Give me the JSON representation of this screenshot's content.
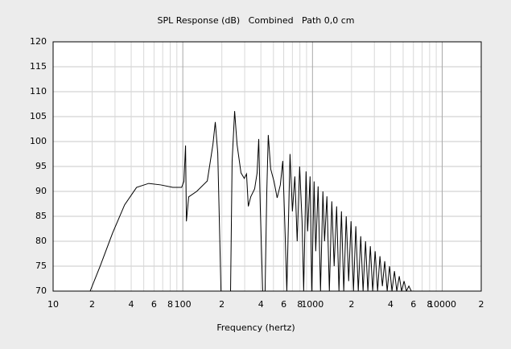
{
  "chart_data": {
    "type": "line",
    "title": "SPL Response (dB)   Combined   Path 0,0 cm",
    "xlabel": "Frequency (hertz)",
    "xscale": "log",
    "xlim": [
      10,
      20000
    ],
    "ylim": [
      70,
      120
    ],
    "xticks": [
      10,
      {
        "value": 20,
        "label": "2"
      },
      {
        "value": 40,
        "label": "4"
      },
      {
        "value": 60,
        "label": "6"
      },
      {
        "value": 80,
        "label": "8"
      },
      100,
      {
        "value": 200,
        "label": "2"
      },
      {
        "value": 400,
        "label": "4"
      },
      {
        "value": 600,
        "label": "6"
      },
      {
        "value": 800,
        "label": "8"
      },
      1000,
      {
        "value": 2000,
        "label": "2"
      },
      {
        "value": 4000,
        "label": "4"
      },
      {
        "value": 6000,
        "label": "6"
      },
      {
        "value": 8000,
        "label": "8"
      },
      10000,
      {
        "value": 20000,
        "label": "2"
      }
    ],
    "x_minor_grid": [
      30,
      50,
      70,
      90,
      300,
      500,
      700,
      900,
      3000,
      5000,
      7000,
      9000
    ],
    "yticks": [
      70,
      75,
      80,
      85,
      90,
      95,
      100,
      105,
      110,
      115,
      120
    ],
    "grid": true,
    "x": [
      19.3,
      23.2,
      28.7,
      35.6,
      44,
      54.6,
      67.6,
      83.7,
      97.9,
      102,
      105,
      106.6,
      111,
      128,
      154.5,
      170.7,
      178,
      186,
      197,
      233.5,
      240,
      251,
      262,
      281,
      298,
      310,
      320,
      334,
      358,
      374,
      385,
      396,
      413,
      431,
      444,
      456,
      476,
      505,
      534,
      565,
      590,
      615,
      634,
      671,
      700,
      731,
      762,
      796,
      831,
      855,
      892,
      918,
      958,
      986,
      1029,
      1059,
      1105,
      1153,
      1203,
      1239,
      1292,
      1349,
      1409,
      1469,
      1535,
      1600,
      1672,
      1742,
      1820,
      1901,
      1982,
      2070,
      2158,
      2254,
      2355,
      2455,
      2564,
      2673,
      2793,
      2911,
      3041,
      3177,
      3311,
      3459,
      3606,
      3767,
      3926,
      4102,
      4285,
      4467,
      4667,
      4864,
      5082,
      5297,
      5534,
      5781
    ],
    "series": [
      {
        "color": "#000000",
        "values": [
          70,
          75.2,
          81.6,
          87.3,
          90.8,
          91.6,
          91.3,
          90.8,
          90.8,
          92,
          99.2,
          84,
          88.9,
          90,
          92.1,
          99.4,
          103.9,
          97.7,
          70,
          70,
          96,
          106.1,
          99.4,
          93.7,
          92.6,
          93.5,
          87,
          88.9,
          90.5,
          93.7,
          100.5,
          86.5,
          70,
          70,
          89.7,
          101.3,
          94.5,
          92,
          88.7,
          91.3,
          96.1,
          81.6,
          70,
          97.5,
          86,
          93,
          80,
          95,
          84,
          70,
          94,
          82,
          93,
          70,
          92,
          78,
          91,
          70,
          90,
          80,
          89,
          70,
          88,
          75,
          87,
          70,
          86,
          70,
          85,
          72,
          84,
          70,
          83,
          70,
          81,
          70,
          80,
          70,
          79,
          70,
          78,
          70,
          77,
          71,
          76,
          70,
          75,
          70,
          74,
          70,
          73,
          70,
          72,
          70,
          71,
          70
        ]
      }
    ]
  }
}
